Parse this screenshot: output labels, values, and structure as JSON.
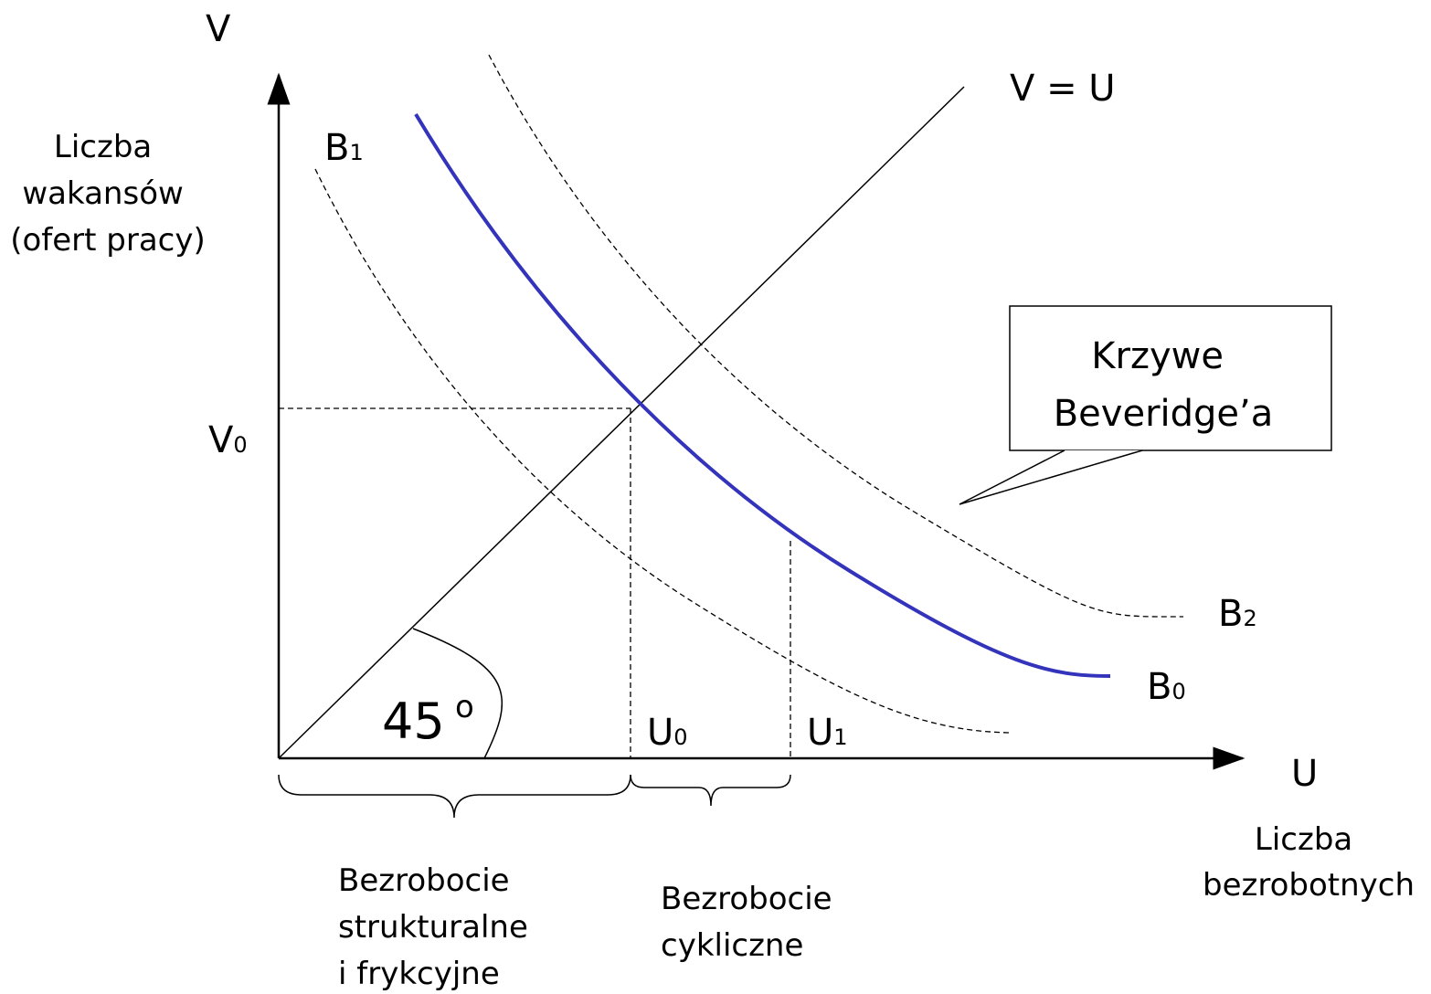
{
  "axes": {
    "y_symbol": "V",
    "y_label": [
      "Liczba",
      "wakansów",
      "(ofert pracy)"
    ],
    "x_symbol": "U",
    "x_label": [
      "Liczba",
      "bezrobotnych"
    ]
  },
  "line_label": "V = U",
  "curves": {
    "b1": {
      "letter": "B",
      "sub": "1"
    },
    "b0": {
      "letter": "B",
      "sub": "0"
    },
    "b2": {
      "letter": "B",
      "sub": "2"
    }
  },
  "points": {
    "v0": {
      "letter": "V",
      "sub": "0"
    },
    "u0": {
      "letter": "U",
      "sub": "0"
    },
    "u1": {
      "letter": "U",
      "sub": "1"
    }
  },
  "angle": {
    "number": "45",
    "degree": "o"
  },
  "callout": [
    "Krzywe",
    "Beveridge’a"
  ],
  "braces": {
    "structural": [
      "Bezrobocie",
      "strukturalne",
      "i frykcyjne"
    ],
    "cyclical": [
      "Bezrobocie",
      "cykliczne"
    ]
  }
}
